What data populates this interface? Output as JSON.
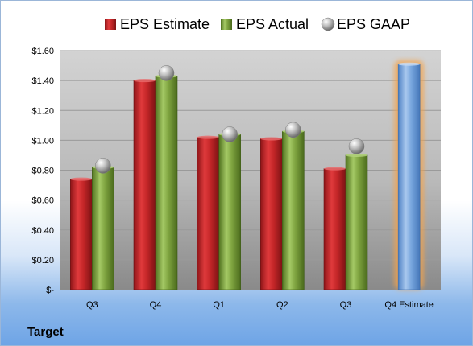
{
  "company": "Target",
  "legend": [
    {
      "label": "EPS Estimate",
      "color": "#c0282a",
      "marker": "square"
    },
    {
      "label": "EPS Actual",
      "color": "#79a03a",
      "marker": "square"
    },
    {
      "label": "EPS GAAP",
      "color": "#a9a9a9",
      "marker": "sphere"
    }
  ],
  "chart_data": {
    "type": "bar",
    "categories": [
      "Q3",
      "Q4",
      "Q1",
      "Q2",
      "Q3",
      "Q4 Estimate"
    ],
    "series": [
      {
        "name": "EPS Estimate",
        "values": [
          0.74,
          1.4,
          1.02,
          1.01,
          0.81,
          null
        ],
        "color": "#c0282a"
      },
      {
        "name": "EPS Actual",
        "values": [
          0.82,
          1.43,
          1.04,
          1.06,
          0.9,
          null
        ],
        "color": "#79a03a"
      },
      {
        "name": "EPS GAAP",
        "values": [
          0.83,
          1.45,
          1.04,
          1.07,
          0.96,
          null
        ],
        "color": "#a9a9a9",
        "marker": "sphere"
      }
    ],
    "estimate": {
      "category": "Q4 Estimate",
      "value": 1.51,
      "color": "#6f9fd8",
      "glow": "#f5a34a"
    },
    "yticks": [
      "$-",
      "$0.20",
      "$0.40",
      "$0.60",
      "$0.80",
      "$1.00",
      "$1.20",
      "$1.40",
      "$1.60"
    ],
    "ylim": [
      0,
      1.6
    ],
    "grid": true,
    "legend_position": "top"
  }
}
